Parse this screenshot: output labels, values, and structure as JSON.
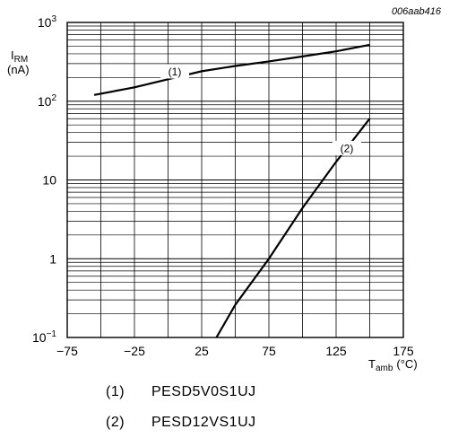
{
  "chart_data": {
    "type": "line",
    "figure_id": "006aab416",
    "ylabel_symbol": "I",
    "ylabel_subscript": "RM",
    "ylabel_unit": "(nA)",
    "xlabel_symbol": "T",
    "xlabel_subscript": "amb",
    "xlabel_unit": "(°C)",
    "xlim": [
      -75,
      175
    ],
    "ylim": [
      0.1,
      1000
    ],
    "yscale": "log",
    "grid": true,
    "x_ticks": [
      "−75",
      "−25",
      "25",
      "75",
      "125",
      "175"
    ],
    "x_tick_values": [
      -75,
      -25,
      25,
      75,
      125,
      175
    ],
    "y_ticks": [
      {
        "base": "10",
        "exp": "−1",
        "value": 0.1
      },
      {
        "base": "1",
        "exp": "",
        "value": 1
      },
      {
        "base": "10",
        "exp": "",
        "value": 10
      },
      {
        "base": "10",
        "exp": "2",
        "value": 100
      },
      {
        "base": "10",
        "exp": "3",
        "value": 1000
      }
    ],
    "series": [
      {
        "name": "(1)",
        "label_x": 5,
        "x": [
          -55,
          -25,
          0,
          25,
          50,
          75,
          100,
          125,
          150
        ],
        "y": [
          120,
          150,
          190,
          240,
          280,
          320,
          370,
          430,
          520
        ]
      },
      {
        "name": "(2)",
        "label_x": 133,
        "x": [
          36,
          50,
          75,
          100,
          125,
          150
        ],
        "y": [
          0.1,
          0.26,
          1.0,
          4.4,
          17,
          60
        ]
      }
    ]
  },
  "legend": [
    {
      "num": "(1)",
      "text": "PESD5V0S1UJ"
    },
    {
      "num": "(2)",
      "text": "PESD12VS1UJ"
    }
  ]
}
